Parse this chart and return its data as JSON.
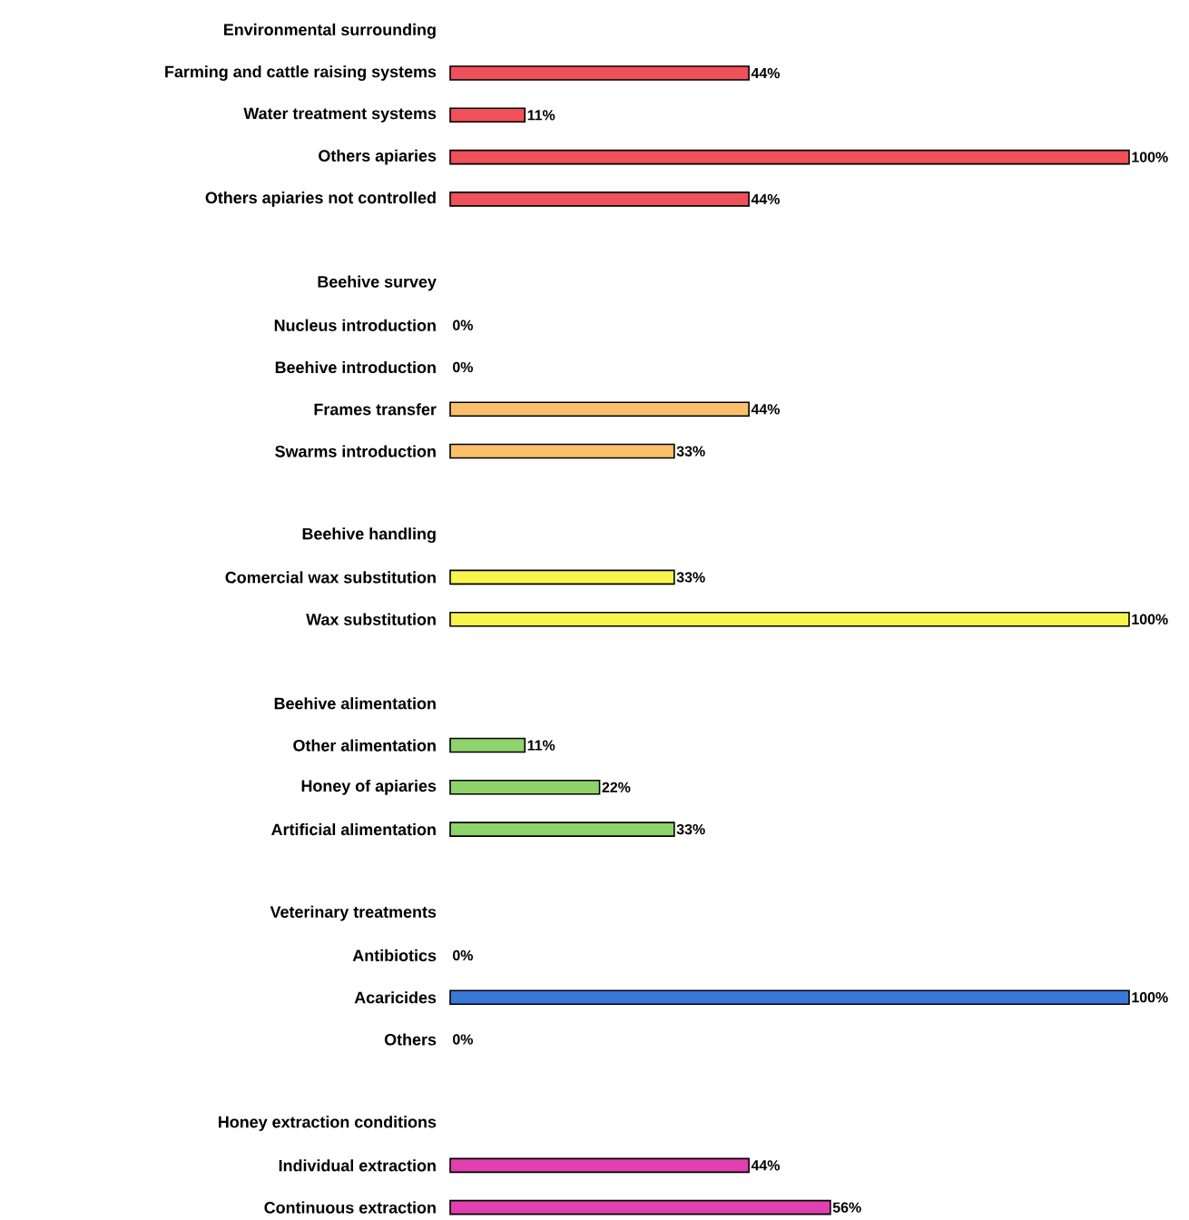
{
  "chart_data": {
    "type": "bar",
    "orientation": "horizontal",
    "categories": [
      "Environmental surrounding",
      "Farming and cattle raising systems",
      "Water treatment systems",
      "Others apiaries",
      "Others apiaries not controlled",
      null,
      "Beehive survey",
      "Nucleus introduction",
      "Beehive introduction",
      "Frames transfer",
      "Swarms introduction",
      null,
      "Beehive handling",
      "Comercial wax substitution",
      "Wax substitution",
      null,
      "Beehive alimentation",
      "Other alimentation",
      "Honey of apiaries",
      "Artificial alimentation",
      null,
      "Veterinary treatments",
      "Antibiotics",
      "Acaricides",
      "Others",
      null,
      "Honey extraction conditions",
      "Individual extraction",
      "Continuous extraction"
    ],
    "values": [
      null,
      44,
      11,
      100,
      44,
      null,
      null,
      0,
      0,
      44,
      33,
      null,
      null,
      33,
      100,
      null,
      null,
      11,
      22,
      33,
      null,
      null,
      0,
      100,
      0,
      null,
      null,
      44,
      56
    ],
    "value_labels": [
      null,
      "44%",
      "11%",
      "100%",
      "44%",
      null,
      null,
      "0%",
      "0%",
      "44%",
      "33%",
      null,
      null,
      "33%",
      "100%",
      null,
      null,
      "11%",
      "22%",
      "33%",
      null,
      null,
      "0%",
      "100%",
      "0%",
      null,
      null,
      "44%",
      "56%"
    ],
    "colors": [
      null,
      "#f0505a",
      "#f0505a",
      "#f0505a",
      "#f0505a",
      null,
      null,
      "#fbbf6a",
      "#fbbf6a",
      "#fbbf6a",
      "#fbbf6a",
      null,
      null,
      "#f8f44c",
      "#f8f44c",
      null,
      null,
      "#8ed46a",
      "#8ed46a",
      "#8ed46a",
      null,
      null,
      "#3a78d8",
      "#3a78d8",
      "#3a78d8",
      null,
      null,
      "#e040b0",
      "#e040b0"
    ]
  }
}
